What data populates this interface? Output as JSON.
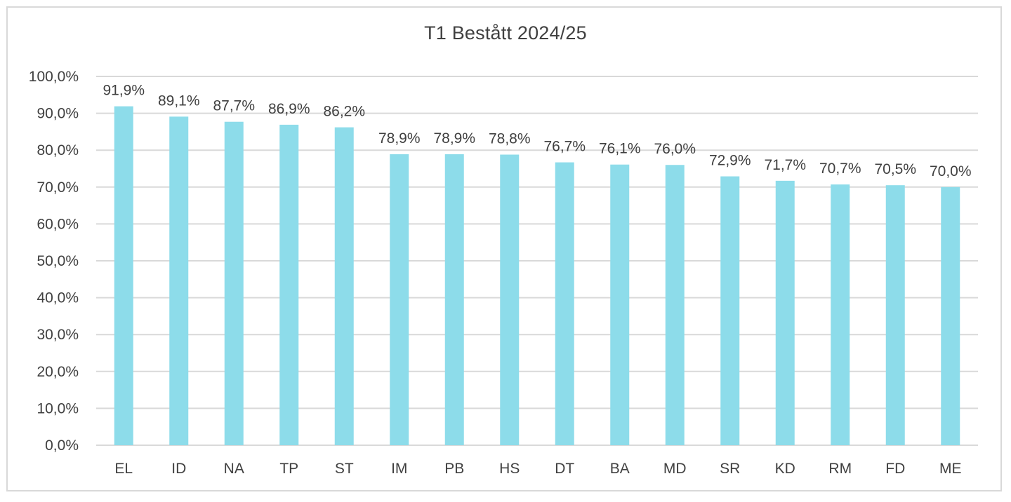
{
  "chart_data": {
    "type": "bar",
    "title": "T1 Bestått 2024/25",
    "xlabel": "",
    "ylabel": "",
    "categories": [
      "EL",
      "ID",
      "NA",
      "TP",
      "ST",
      "IM",
      "PB",
      "HS",
      "DT",
      "BA",
      "MD",
      "SR",
      "KD",
      "RM",
      "FD",
      "ME"
    ],
    "values": [
      91.9,
      89.1,
      87.7,
      86.9,
      86.2,
      78.9,
      78.9,
      78.8,
      76.7,
      76.1,
      76.0,
      72.9,
      71.7,
      70.7,
      70.5,
      70.0
    ],
    "value_labels": [
      "91,9%",
      "89,1%",
      "87,7%",
      "86,9%",
      "86,2%",
      "78,9%",
      "78,9%",
      "78,8%",
      "76,7%",
      "76,1%",
      "76,0%",
      "72,9%",
      "71,7%",
      "70,7%",
      "70,5%",
      "70,0%"
    ],
    "ylim": [
      0,
      100
    ],
    "yticks": [
      0,
      10,
      20,
      30,
      40,
      50,
      60,
      70,
      80,
      90,
      100
    ],
    "ytick_labels": [
      "0,0%",
      "10,0%",
      "20,0%",
      "30,0%",
      "40,0%",
      "50,0%",
      "60,0%",
      "70,0%",
      "80,0%",
      "90,0%",
      "100,0%"
    ],
    "grid": true,
    "legend": "none",
    "colors": {
      "bar": "#8ddcea",
      "grid": "#d9d9d9",
      "text": "#404040"
    }
  }
}
